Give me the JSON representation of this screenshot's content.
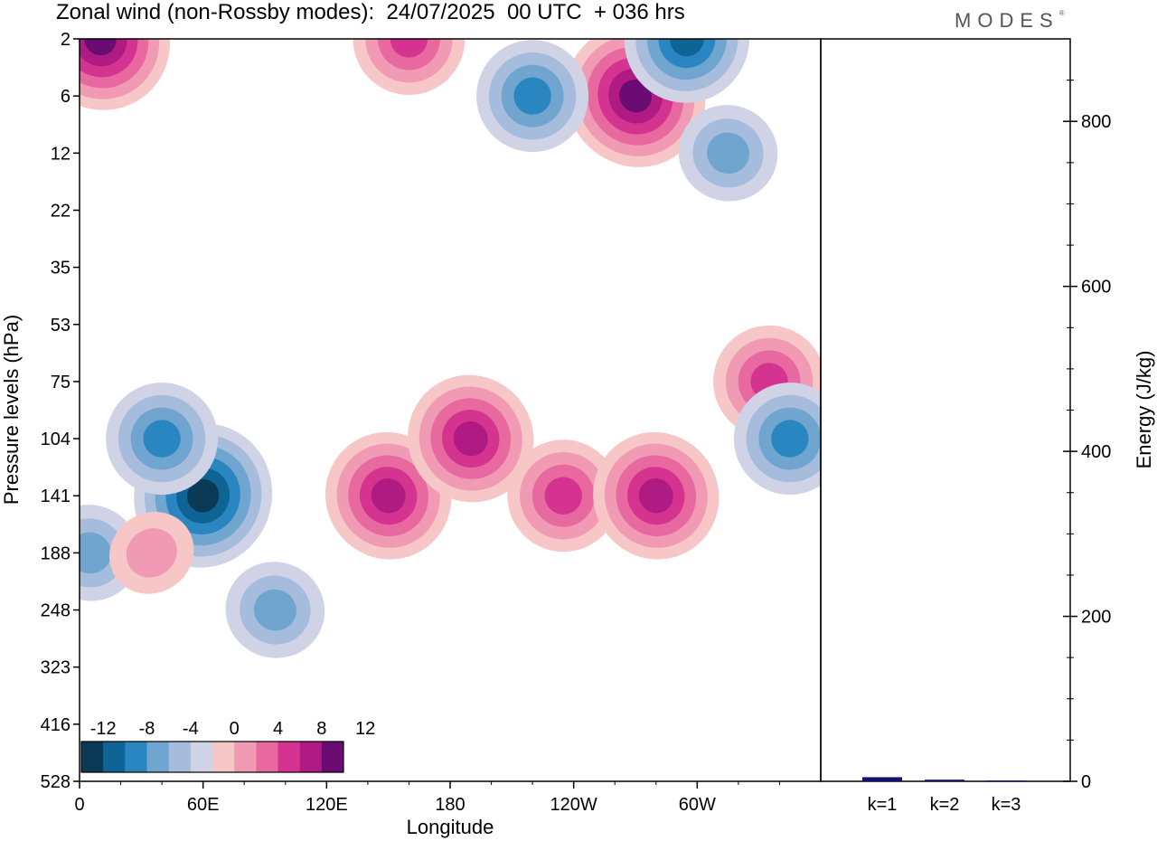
{
  "title": "Zonal wind (non-Rossby modes):  24/07/2025  00 UTC  + 036 hrs",
  "brand": "MODES",
  "brand_mark": "®",
  "colors": {
    "neg": [
      "#0b3a56",
      "#0f6496",
      "#2a86c0",
      "#6fa5cf",
      "#a5bcdc",
      "#d0d3e6"
    ],
    "zero": "#ffffff",
    "pos": [
      "#f7c6c6",
      "#f19ab3",
      "#e7699f",
      "#d53390",
      "#b01a83",
      "#6a0c73"
    ],
    "bar": "#12126e"
  },
  "chart_data": [
    {
      "type": "heatmap",
      "title": "Zonal wind (non-Rossby modes):  24/07/2025  00 UTC  + 036 hrs",
      "xlabel": "Longitude",
      "ylabel": "Pressure levels (hPa)",
      "x_ticks": [
        "0",
        "60E",
        "120E",
        "180",
        "120W",
        "60W"
      ],
      "y_ticks": [
        "2",
        "6",
        "12",
        "22",
        "35",
        "53",
        "75",
        "104",
        "141",
        "188",
        "248",
        "323",
        "416",
        "528"
      ],
      "colorbar_labels": [
        "-12",
        "-8",
        "-4",
        "0",
        "4",
        "8",
        "12"
      ],
      "colorbar_levels": [
        -12,
        -10,
        -8,
        -6,
        -4,
        -2,
        0,
        2,
        4,
        6,
        8,
        10,
        12
      ],
      "features": [
        {
          "lon": 60,
          "level": "141",
          "value": -13
        },
        {
          "lon": 40,
          "level": "104",
          "value": -7
        },
        {
          "lon": 5,
          "level": "188",
          "value": -6
        },
        {
          "lon": 95,
          "level": "248",
          "value": -5
        },
        {
          "lon": 150,
          "level": "141",
          "value": 10
        },
        {
          "lon": 190,
          "level": "104",
          "value": 9
        },
        {
          "lon": 235,
          "level": "141",
          "value": 8
        },
        {
          "lon": 280,
          "level": "141",
          "value": 9
        },
        {
          "lon": 335,
          "level": "75",
          "value": 8
        },
        {
          "lon": 345,
          "level": "104",
          "value": -7
        },
        {
          "lon": 35,
          "level": "188",
          "value": 4
        },
        {
          "lon": 270,
          "level": "6",
          "value": 11
        },
        {
          "lon": 220,
          "level": "6",
          "value": -8
        },
        {
          "lon": 160,
          "level": "2",
          "value": 8
        },
        {
          "lon": 295,
          "level": "2",
          "value": -10
        },
        {
          "lon": 10,
          "level": "2",
          "value": 11
        },
        {
          "lon": 315,
          "level": "12",
          "value": -5
        }
      ]
    },
    {
      "type": "bar",
      "ylabel": "Energy (J/kg)",
      "categories": [
        "k=1",
        "k=2",
        "k=3"
      ],
      "values": [
        5,
        2,
        1
      ],
      "ylim": [
        0,
        900
      ],
      "y_ticks": [
        0,
        200,
        400,
        600,
        800
      ]
    }
  ]
}
